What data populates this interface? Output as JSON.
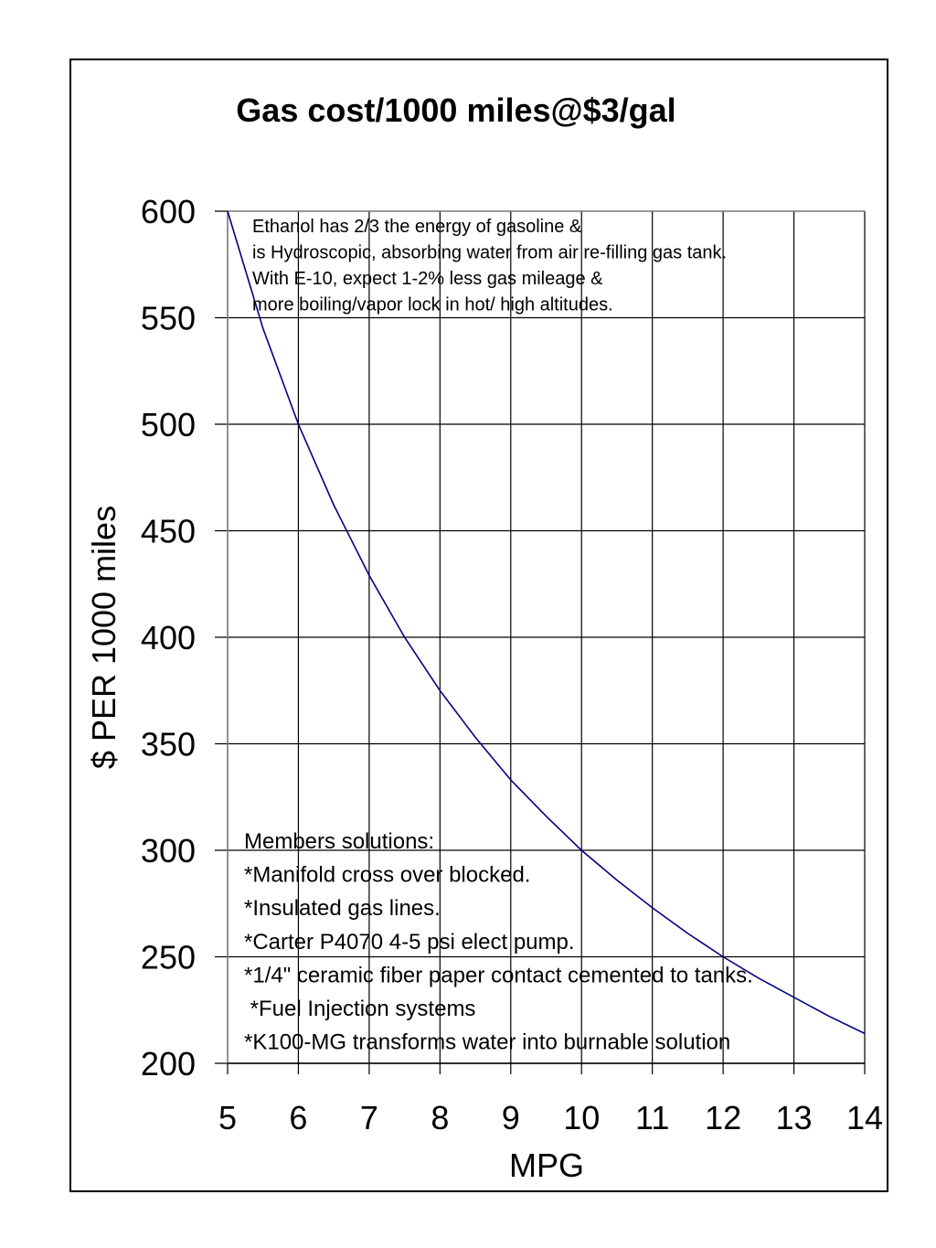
{
  "chart_data": {
    "type": "line",
    "title": "Gas cost/1000 miles@$3/gal",
    "xlabel": "MPG",
    "ylabel": "$ PER 1000 miles",
    "xlim": [
      5,
      14
    ],
    "ylim": [
      200,
      600
    ],
    "x_ticks": [
      "5",
      "6",
      "7",
      "8",
      "9",
      "10",
      "11",
      "12",
      "13",
      "14"
    ],
    "y_ticks": [
      "200",
      "250",
      "300",
      "350",
      "400",
      "450",
      "500",
      "550",
      "600"
    ],
    "grid": true,
    "line_color": "#000080",
    "series": [
      {
        "x": [
          5,
          5.5,
          6,
          6.5,
          7,
          7.5,
          8,
          8.5,
          9,
          9.5,
          10,
          10.5,
          11,
          11.5,
          12,
          12.5,
          13,
          13.5,
          14
        ],
        "values": [
          600,
          545,
          500,
          462,
          429,
          400,
          375,
          353,
          333,
          316,
          300,
          286,
          273,
          261,
          250,
          240,
          231,
          222,
          214
        ]
      }
    ],
    "annotations": [
      {
        "lines": [
          "Ethanol has 2/3 the energy of gasoline &",
          "is Hydroscopic, absorbing water from air re-filling gas tank.",
          "With E-10, expect 1-2% less gas mileage &",
          "more boiling/vapor lock in hot/ high altitudes."
        ]
      },
      {
        "lines": [
          "Members solutions:",
          "*Manifold cross over blocked.",
          "*Insulated gas lines.",
          "*Carter P4070 4-5 psi elect pump.",
          "*1/4\" ceramic fiber paper contact cemented to tanks.",
          " *Fuel Injection systems",
          "*K100-MG transforms water into burnable solution"
        ]
      }
    ]
  }
}
